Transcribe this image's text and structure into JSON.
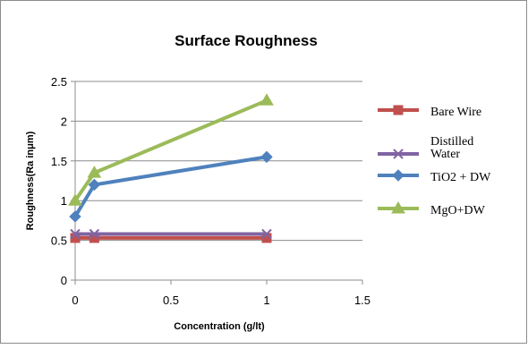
{
  "chart_data": {
    "type": "line",
    "title": "Surface Roughness",
    "xlabel": "Concentration (g/lt)",
    "ylabel": "Roughness(Ra inμm)",
    "xlim": [
      0,
      1.5
    ],
    "ylim": [
      0,
      2.5
    ],
    "xticks": [
      "0",
      "0.5",
      "1",
      "1.5"
    ],
    "yticks": [
      "0",
      "0.5",
      "1",
      "1.5",
      "2",
      "2.5"
    ],
    "grid": "horizontal",
    "legend_position": "right",
    "series": [
      {
        "name": "Bare Wire",
        "color": "#c0504d",
        "marker": "square",
        "x": [
          0,
          0.1,
          1
        ],
        "y": [
          0.53,
          0.53,
          0.53
        ]
      },
      {
        "name": "Distilled Water",
        "color": "#8064a2",
        "marker": "x",
        "x": [
          0,
          0.1,
          1
        ],
        "y": [
          0.58,
          0.58,
          0.58
        ]
      },
      {
        "name": "TiO2 + DW",
        "color": "#4f81bd",
        "marker": "diamond",
        "x": [
          0,
          0.1,
          1
        ],
        "y": [
          0.8,
          1.2,
          1.55
        ]
      },
      {
        "name": "MgO+DW",
        "color": "#9bbb59",
        "marker": "triangle",
        "x": [
          0,
          0.1,
          1
        ],
        "y": [
          1.0,
          1.35,
          2.26
        ]
      }
    ]
  }
}
